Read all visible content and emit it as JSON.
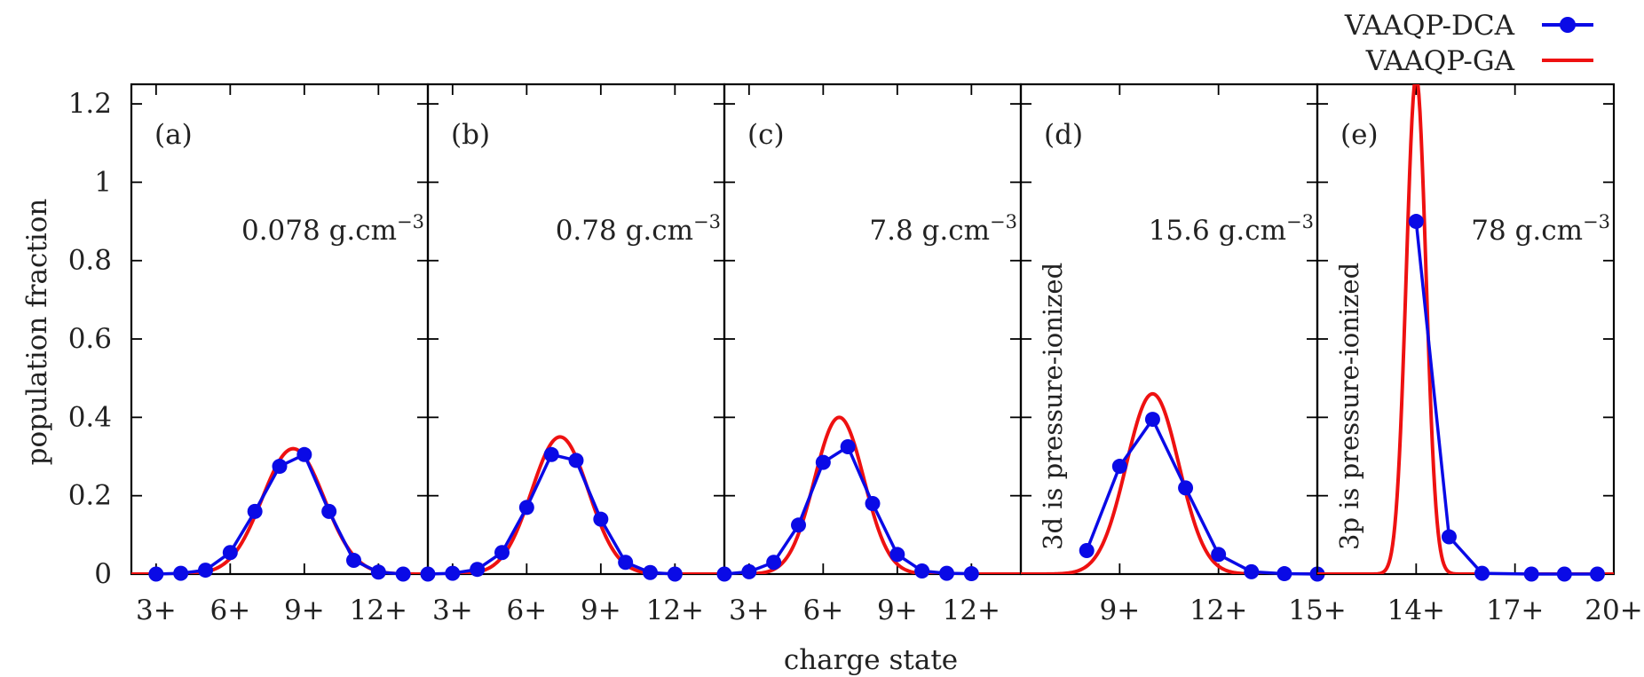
{
  "chart_data": {
    "type": "line",
    "ylabel": "population fraction",
    "xlabel": "charge state",
    "ylim": [
      0,
      1.25
    ],
    "yticks": [
      "0",
      "0.2",
      "0.4",
      "0.6",
      "0.8",
      "1",
      "1.2"
    ],
    "grid": false,
    "legend_position": "top-right",
    "legend": [
      {
        "label": "VAAQP-DCA",
        "color": "#0a0ae6",
        "style": "line-with-markers"
      },
      {
        "label": "VAAQP-GA",
        "color": "#ee1111",
        "style": "line"
      }
    ],
    "panels": [
      {
        "label": "(a)",
        "density": "0.078 g.cm",
        "density_exp": "−3",
        "xlim": [
          2,
          14
        ],
        "xticks": [
          {
            "value": 3,
            "label": "3+"
          },
          {
            "value": 6,
            "label": "6+"
          },
          {
            "value": 9,
            "label": "9+"
          },
          {
            "value": 12,
            "label": "12+"
          }
        ],
        "note": "",
        "series": [
          {
            "name": "VAAQP-DCA",
            "x": [
              3,
              4,
              5,
              6,
              7,
              8,
              9,
              10,
              11,
              12,
              13
            ],
            "y": [
              0.0,
              0.002,
              0.01,
              0.055,
              0.16,
              0.275,
              0.305,
              0.16,
              0.035,
              0.005,
              0.0
            ]
          },
          {
            "name": "VAAQP-GA",
            "mu": 8.55,
            "sigma": 1.25,
            "amplitude": 0.32
          }
        ]
      },
      {
        "label": "(b)",
        "density": "0.78 g.cm",
        "density_exp": "−3",
        "xlim": [
          2,
          14
        ],
        "xticks": [
          {
            "value": 3,
            "label": "3+"
          },
          {
            "value": 6,
            "label": "6+"
          },
          {
            "value": 9,
            "label": "9+"
          },
          {
            "value": 12,
            "label": "12+"
          }
        ],
        "note": "",
        "series": [
          {
            "name": "VAAQP-DCA",
            "x": [
              2,
              3,
              4,
              5,
              6,
              7,
              8,
              9,
              10,
              11,
              12
            ],
            "y": [
              0.0,
              0.002,
              0.012,
              0.055,
              0.17,
              0.305,
              0.29,
              0.14,
              0.03,
              0.004,
              0.0
            ]
          },
          {
            "name": "VAAQP-GA",
            "mu": 7.35,
            "sigma": 1.15,
            "amplitude": 0.35
          }
        ]
      },
      {
        "label": "(c)",
        "density": "7.8 g.cm",
        "density_exp": "−3",
        "xlim": [
          2,
          14
        ],
        "xticks": [
          {
            "value": 3,
            "label": "3+"
          },
          {
            "value": 6,
            "label": "6+"
          },
          {
            "value": 9,
            "label": "9+"
          },
          {
            "value": 12,
            "label": "12+"
          }
        ],
        "note": "",
        "series": [
          {
            "name": "VAAQP-DCA",
            "x": [
              2,
              3,
              4,
              5,
              6,
              7,
              8,
              9,
              10,
              11,
              12
            ],
            "y": [
              0.0,
              0.006,
              0.03,
              0.125,
              0.285,
              0.325,
              0.18,
              0.05,
              0.008,
              0.002,
              0.001
            ]
          },
          {
            "name": "VAAQP-GA",
            "mu": 6.65,
            "sigma": 1.0,
            "amplitude": 0.4
          }
        ]
      },
      {
        "label": "(d)",
        "density": "15.6 g.cm",
        "density_exp": "−3",
        "xlim": [
          6,
          15
        ],
        "xticks": [
          {
            "value": 9,
            "label": "9+"
          },
          {
            "value": 12,
            "label": "12+"
          },
          {
            "value": 15,
            "label": "15+"
          }
        ],
        "note": "3d is pressure-ionized",
        "series": [
          {
            "name": "VAAQP-DCA",
            "x": [
              8,
              9,
              10,
              11,
              12,
              13,
              14,
              15
            ],
            "y": [
              0.06,
              0.275,
              0.395,
              0.22,
              0.05,
              0.006,
              0.001,
              0.0
            ]
          },
          {
            "name": "VAAQP-GA",
            "mu": 10.0,
            "sigma": 0.8,
            "amplitude": 0.46
          }
        ]
      },
      {
        "label": "(e)",
        "density": "78 g.cm",
        "density_exp": "−3",
        "xlim": [
          11,
          20
        ],
        "xticks": [
          {
            "value": 14,
            "label": "14+"
          },
          {
            "value": 17,
            "label": "17+"
          },
          {
            "value": 20,
            "label": "20+"
          }
        ],
        "note": "3p is pressure-ionized",
        "series": [
          {
            "name": "VAAQP-DCA",
            "x": [
              14,
              15,
              16,
              17.5,
              18.5,
              19.5
            ],
            "y": [
              0.9,
              0.095,
              0.002,
              0.0,
              0.0,
              0.0
            ]
          },
          {
            "name": "VAAQP-GA",
            "mu": 14.0,
            "sigma": 0.3,
            "amplitude": 1.27
          }
        ]
      }
    ]
  }
}
